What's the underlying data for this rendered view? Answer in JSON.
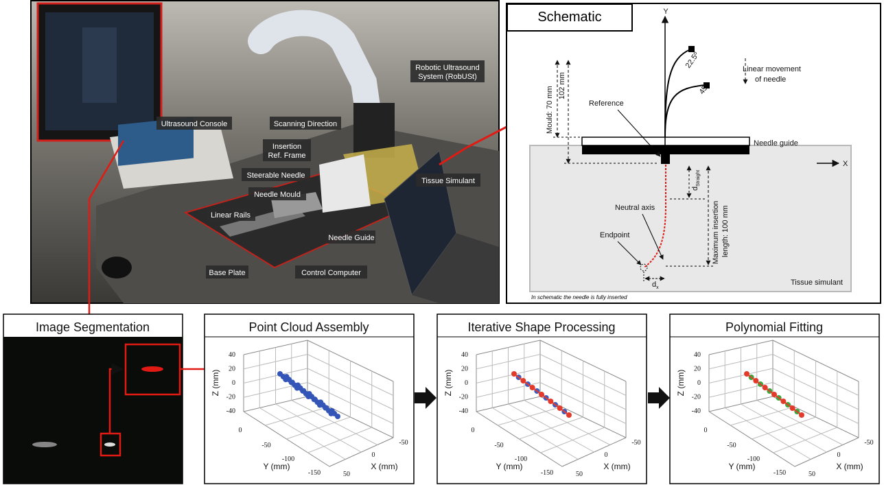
{
  "photo": {
    "labels": [
      {
        "lines": [
          "Robotic Ultrasound",
          "System (RobUSt)"
        ]
      },
      {
        "lines": [
          "Ultrasound Console"
        ]
      },
      {
        "lines": [
          "Scanning Direction"
        ]
      },
      {
        "lines": [
          "Insertion",
          "Ref. Frame"
        ]
      },
      {
        "lines": [
          "Steerable Needle"
        ]
      },
      {
        "lines": [
          "Needle Mould"
        ]
      },
      {
        "lines": [
          "Tissue Simulant"
        ]
      },
      {
        "lines": [
          "Linear Rails"
        ]
      },
      {
        "lines": [
          "Needle Guide"
        ]
      },
      {
        "lines": [
          "Base Plate"
        ]
      },
      {
        "lines": [
          "Control Computer"
        ]
      }
    ]
  },
  "schematic": {
    "title": "Schematic",
    "y_axis": "Y",
    "x_axis": "X",
    "movement": [
      "Linear movement",
      "of needle"
    ],
    "angle_1": "22.5º",
    "angle_2": "45º",
    "mould": "Mould: 70 mm",
    "mould_total": "102 mm",
    "reference": "Reference",
    "needle_guide": "Needle guide",
    "d_straight": {
      "main": "d",
      "sub": "Straight"
    },
    "neutral_axis": "Neutral axis",
    "endpoint": "Endpoint",
    "insertion": [
      "Maximum insertion",
      "length: 100 mm"
    ],
    "d_x": {
      "main": "d",
      "sub": "x"
    },
    "tissue": "Tissue simulant",
    "note": "In schematic the needle is fully inserted"
  },
  "segmentation": {
    "title": "Image Segmentation"
  },
  "plots": [
    {
      "title": "Point Cloud Assembly",
      "z_label": "Z (mm)",
      "y_label": "Y (mm)",
      "x_label": "X (mm)",
      "z_ticks": [
        40,
        20,
        0,
        -20,
        -40
      ],
      "y_ticks": [
        0,
        -50,
        -100,
        -150
      ],
      "x_ticks": [
        -50,
        0,
        50
      ]
    },
    {
      "title": "Iterative Shape Processing",
      "z_label": "Z (mm)",
      "y_label": "Y (mm)",
      "x_label": "X (mm)",
      "z_ticks": [
        40,
        20,
        0,
        -20,
        -40
      ],
      "y_ticks": [
        0,
        -50,
        -100,
        -150
      ],
      "x_ticks": [
        -50,
        0,
        50
      ]
    },
    {
      "title": "Polynomial Fitting",
      "z_label": "Z (mm)",
      "y_label": "Y (mm)",
      "x_label": "X (mm)",
      "z_ticks": [
        40,
        20,
        0,
        -20,
        -40
      ],
      "y_ticks": [
        0,
        -50,
        -100,
        -150
      ],
      "x_ticks": [
        -50,
        0,
        50
      ]
    }
  ]
}
